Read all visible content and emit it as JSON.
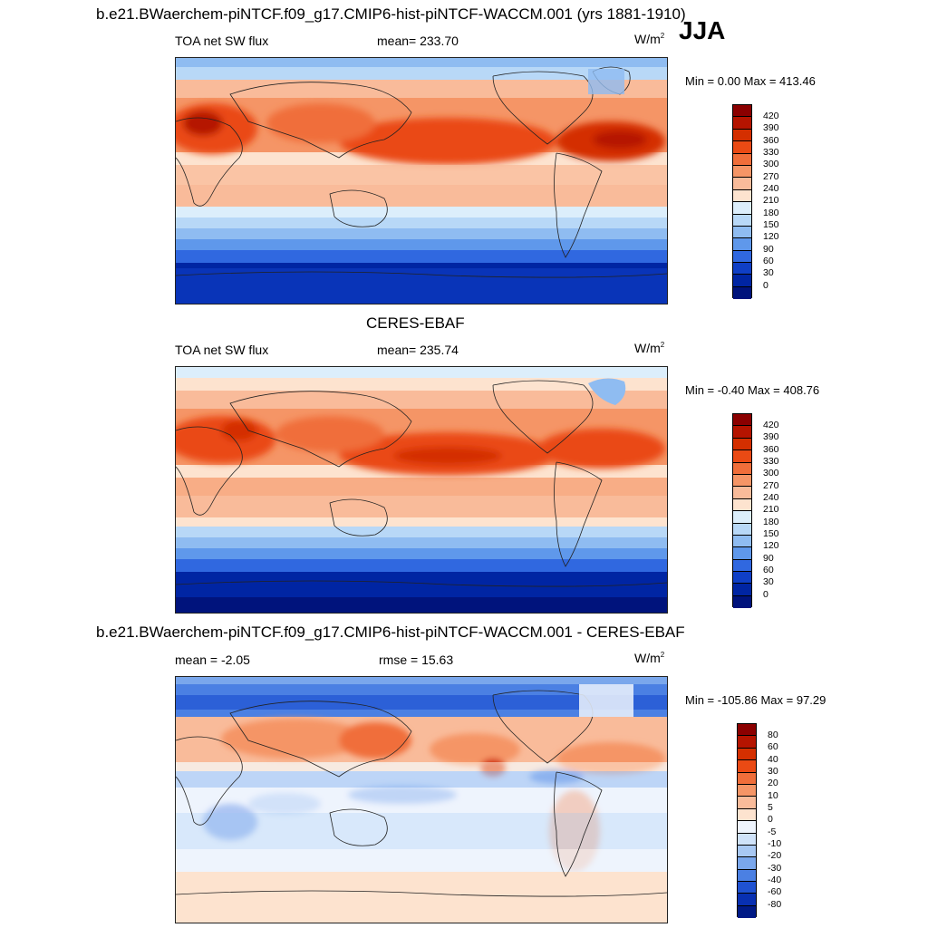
{
  "header": {
    "title": "b.e21.BWaerchem-piNTCF.f09_g17.CMIP6-hist-piNTCF-WACCM.001 (yrs 1881-1910)",
    "season": "JJA"
  },
  "panels": [
    {
      "id": "model",
      "variable": "TOA net SW flux",
      "stat": "mean= 233.70",
      "units": "W/m",
      "units_exp": "2",
      "minmax": "Min =   0.00 Max = 413.46",
      "colorbar_labels": [
        "420",
        "390",
        "360",
        "330",
        "300",
        "270",
        "240",
        "210",
        "180",
        "150",
        "120",
        "90",
        "60",
        "30",
        "0"
      ],
      "colorbar_colors": [
        "#8b0000",
        "#b51400",
        "#d42f00",
        "#ea4a14",
        "#f06e3a",
        "#f59566",
        "#f9bb9a",
        "#fde3cf",
        "#dceefb",
        "#b8d8f7",
        "#8fbcf1",
        "#5f98eb",
        "#3068e0",
        "#0f3fc6",
        "#0025a3",
        "#00137c"
      ]
    },
    {
      "id": "obs",
      "title": "CERES-EBAF",
      "variable": "TOA net SW flux",
      "stat": "mean= 235.74",
      "units": "W/m",
      "units_exp": "2",
      "minmax": "Min =  -0.40 Max = 408.76",
      "colorbar_labels": [
        "420",
        "390",
        "360",
        "330",
        "300",
        "270",
        "240",
        "210",
        "180",
        "150",
        "120",
        "90",
        "60",
        "30",
        "0"
      ],
      "colorbar_colors": [
        "#8b0000",
        "#b51400",
        "#d42f00",
        "#ea4a14",
        "#f06e3a",
        "#f59566",
        "#f9bb9a",
        "#fde3cf",
        "#dceefb",
        "#b8d8f7",
        "#8fbcf1",
        "#5f98eb",
        "#3068e0",
        "#0f3fc6",
        "#0025a3",
        "#00137c"
      ]
    },
    {
      "id": "diff",
      "title": "b.e21.BWaerchem-piNTCF.f09_g17.CMIP6-hist-piNTCF-WACCM.001 - CERES-EBAF",
      "stat": "mean =  -2.05",
      "stat2": "rmse =  15.63",
      "units": "W/m",
      "units_exp": "2",
      "minmax": "Min = -105.86 Max =  97.29",
      "colorbar_labels": [
        "80",
        "60",
        "40",
        "30",
        "20",
        "10",
        "5",
        "0",
        "-5",
        "-10",
        "-20",
        "-30",
        "-40",
        "-60",
        "-80"
      ],
      "colorbar_colors": [
        "#8b0000",
        "#b51400",
        "#d42f00",
        "#ea4a14",
        "#f06e3a",
        "#f59566",
        "#f9bb9a",
        "#fde3cf",
        "#eef4fd",
        "#cfe2f9",
        "#a8c8f3",
        "#7aa7ec",
        "#4b80e3",
        "#1f52d2",
        "#0830b2",
        "#001a86"
      ]
    }
  ]
}
